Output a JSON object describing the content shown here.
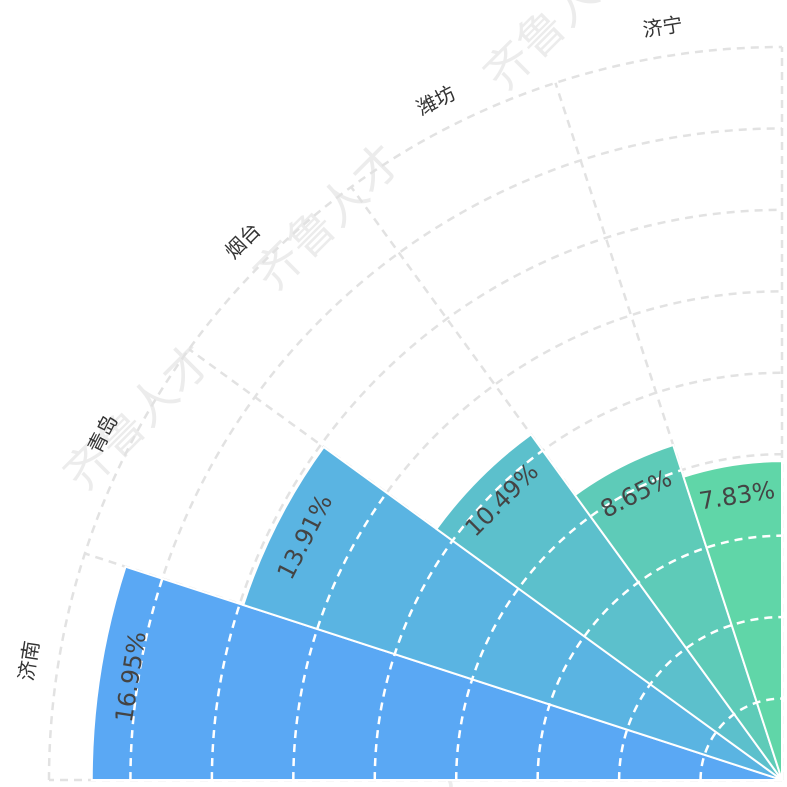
{
  "chart_data": {
    "type": "polar-bar",
    "categories": [
      "济南",
      "青岛",
      "烟台",
      "潍坊",
      "济宁"
    ],
    "values": [
      16.95,
      13.91,
      10.49,
      8.65,
      7.83
    ],
    "value_labels": [
      "16.95%",
      "13.91%",
      "10.49%",
      "8.65%",
      "7.83%"
    ],
    "colors": [
      "#5aa8f4",
      "#5ab4e2",
      "#5cc0cc",
      "#5ecbb8",
      "#60d6a8"
    ],
    "rlim": [
      0,
      18
    ],
    "rticks": [
      0,
      2,
      4,
      6,
      8,
      10,
      12,
      14,
      16,
      18
    ],
    "grid": true,
    "watermark": "齐鲁人才"
  }
}
